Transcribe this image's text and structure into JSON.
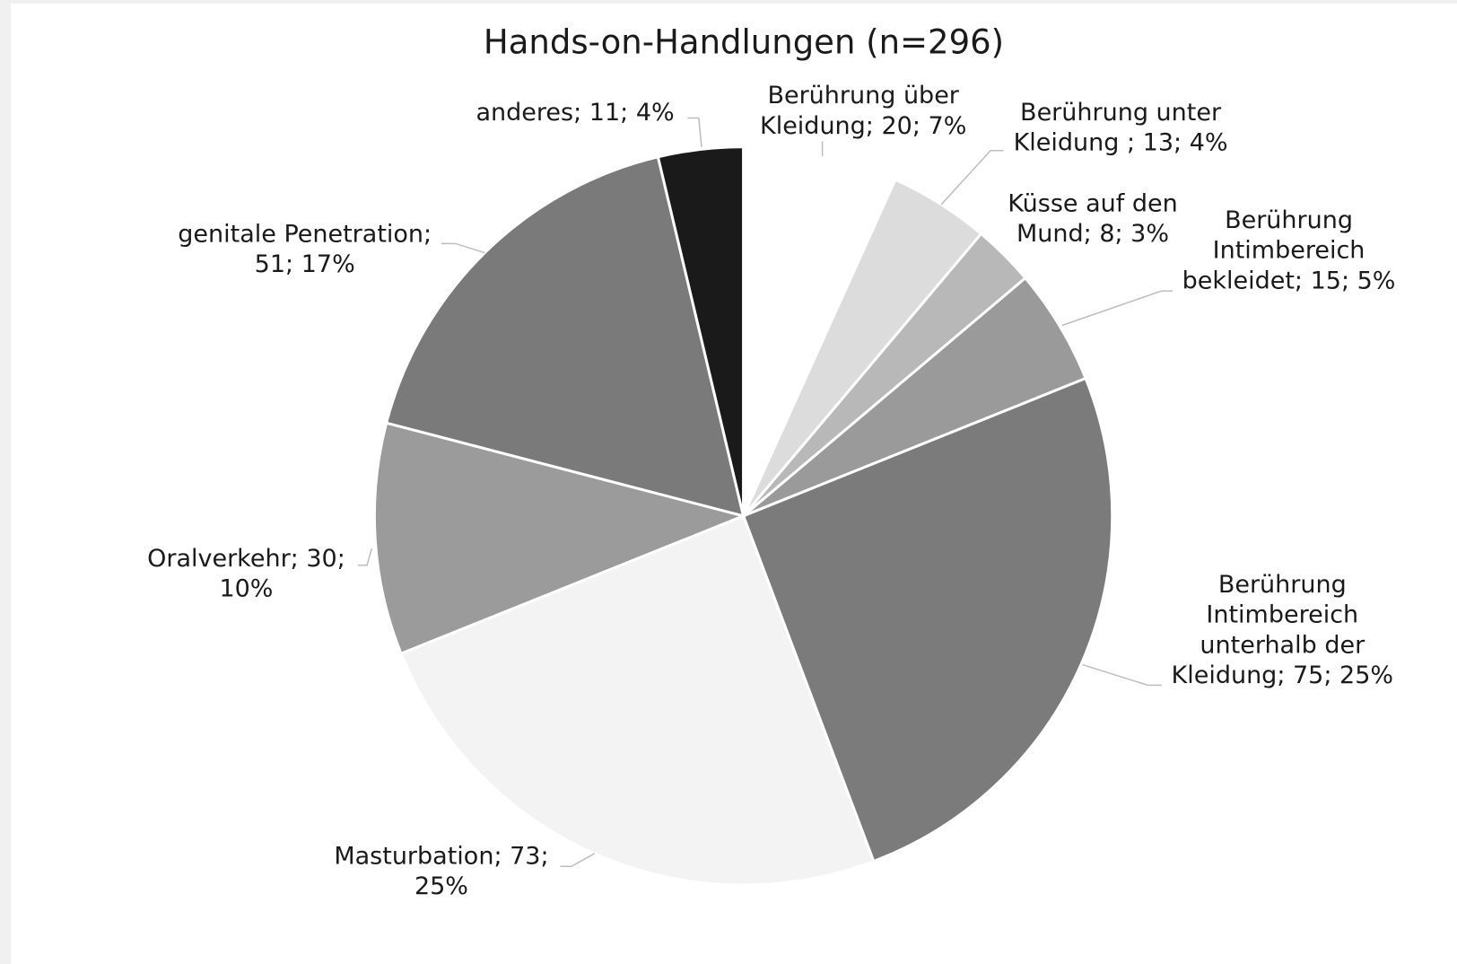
{
  "chart_data": {
    "type": "pie",
    "title": "Hands-on-Handlungen (n=296)",
    "values": [
      20,
      13,
      8,
      15,
      75,
      73,
      30,
      51,
      11
    ],
    "value_labels": [
      [
        "Berührung über",
        "Kleidung; 20; 7%"
      ],
      [
        "Berührung unter",
        "Kleidung ; 13; 4%"
      ],
      [
        "Küsse auf den",
        "Mund; 8; 3%"
      ],
      [
        "Berührung",
        "Intimbereich",
        "bekleidet; 15; 5%"
      ],
      [
        "Berührung",
        "Intimbereich",
        "unterhalb der",
        "Kleidung; 75; 25%"
      ],
      [
        "Masturbation; 73;",
        "25%"
      ],
      [
        "Oralverkehr; 30;",
        "10%"
      ],
      [
        "genitale Penetration;",
        "51; 17%"
      ],
      [
        "anderes; 11; 4%"
      ]
    ],
    "colors": [
      "#ffffff",
      "#dcdcdc",
      "#b8b8b8",
      "#9a9a9a",
      "#7b7b7b",
      "#f3f3f3",
      "#9b9b9c",
      "#7a7a7a",
      "#1a1a1a"
    ]
  }
}
